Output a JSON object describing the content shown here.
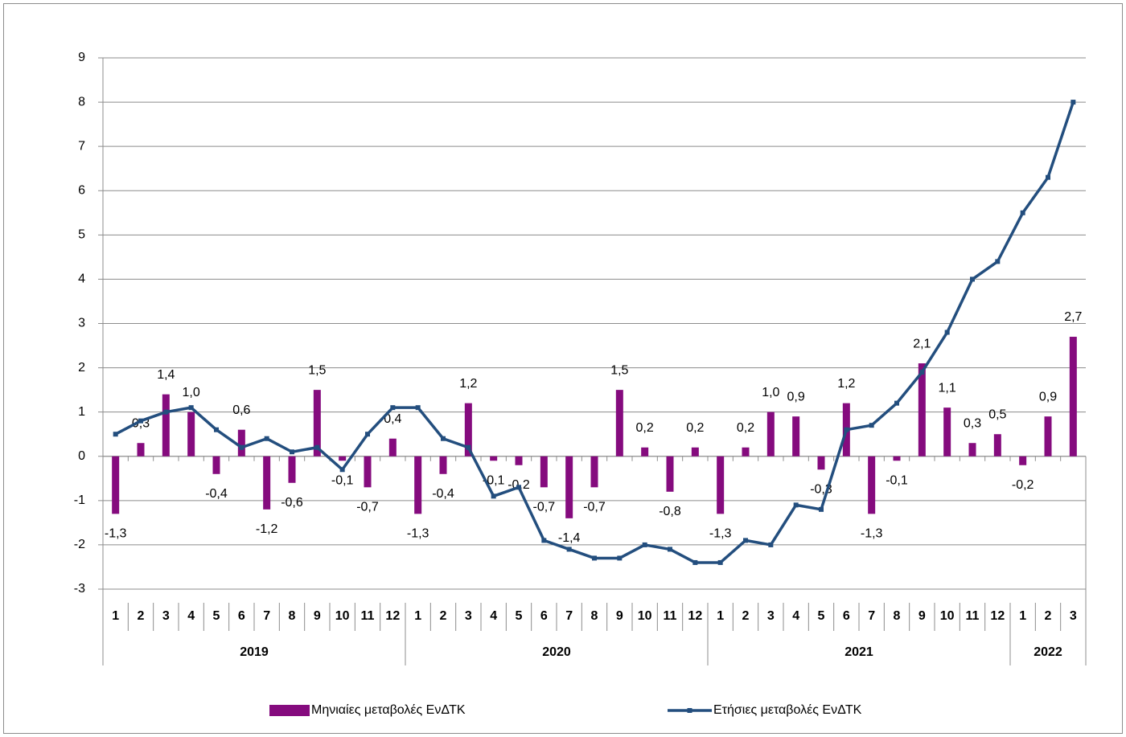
{
  "chart_data": {
    "type": "bar-line",
    "categories": [
      "1",
      "2",
      "3",
      "4",
      "5",
      "6",
      "7",
      "8",
      "9",
      "10",
      "11",
      "12",
      "1",
      "2",
      "3",
      "4",
      "5",
      "6",
      "7",
      "8",
      "9",
      "10",
      "11",
      "12",
      "1",
      "2",
      "3",
      "4",
      "5",
      "6",
      "7",
      "8",
      "9",
      "10",
      "11",
      "12",
      "1",
      "2",
      "3"
    ],
    "groups": [
      "2019",
      "2020",
      "2021",
      "2022"
    ],
    "series": [
      {
        "name": "Μηνιαίες μεταβολές ΕνΔΤΚ",
        "kind": "bar",
        "color": "#850b7e",
        "values": [
          -1.3,
          0.3,
          1.4,
          1.0,
          -0.4,
          0.6,
          -1.2,
          -0.6,
          1.5,
          -0.1,
          -0.7,
          0.4,
          -1.3,
          -0.4,
          1.2,
          -0.1,
          -0.2,
          -0.7,
          -1.4,
          -0.7,
          1.5,
          0.2,
          -0.8,
          0.2,
          -1.3,
          0.2,
          1.0,
          0.9,
          -0.3,
          1.2,
          -1.3,
          -0.1,
          2.1,
          1.1,
          0.3,
          0.5,
          -0.2,
          0.9,
          2.7
        ],
        "value_labels": [
          "-1,3",
          "0,3",
          "1,4",
          "1,0",
          "-0,4",
          "0,6",
          "-1,2",
          "-0,6",
          "1,5",
          "-0,1",
          "-0,7",
          "0,4",
          "-1,3",
          "-0,4",
          "1,2",
          "-0,1",
          "-0,2",
          "-0,7",
          "-1,4",
          "-0,7",
          "1,5",
          "0,2",
          "-0,8",
          "0,2",
          "-1,3",
          "0,2",
          "1,0",
          "0,9",
          "-0,3",
          "1,2",
          "-1,3",
          "-0,1",
          "2,1",
          "1,1",
          "0,3",
          "0,5",
          "-0,2",
          "0,9",
          "2,7"
        ]
      },
      {
        "name": "Ετήσιες μεταβολές ΕνΔΤΚ",
        "kind": "line",
        "color": "#234e7e",
        "values": [
          0.5,
          0.8,
          1.0,
          1.1,
          0.6,
          0.2,
          0.4,
          0.1,
          0.2,
          -0.3,
          0.5,
          1.1,
          1.1,
          0.4,
          0.2,
          -0.9,
          -0.7,
          -1.9,
          -2.1,
          -2.3,
          -2.3,
          -2.0,
          -2.1,
          -2.4,
          -2.4,
          -1.9,
          -2.0,
          -1.1,
          -1.2,
          0.6,
          0.7,
          1.2,
          1.9,
          2.8,
          4.0,
          4.4,
          5.5,
          6.3,
          8.0
        ]
      }
    ],
    "ylim": [
      -3,
      9
    ],
    "yticks": [
      -3,
      -2,
      -1,
      0,
      1,
      2,
      3,
      4,
      5,
      6,
      7,
      8,
      9
    ],
    "grid": true
  }
}
